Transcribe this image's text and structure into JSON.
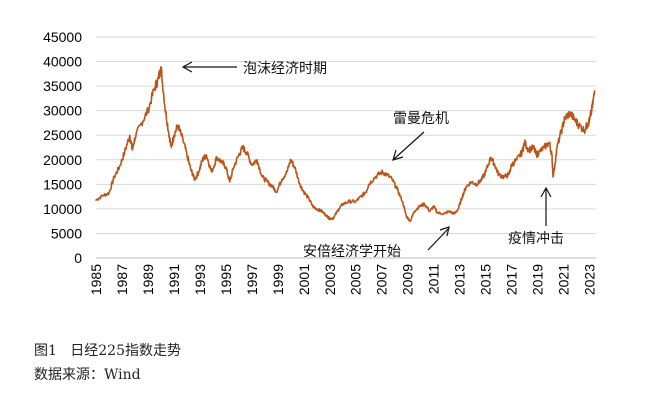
{
  "chart_data": {
    "type": "line",
    "title": "",
    "xlabel": "",
    "ylabel": "",
    "ylim": [
      0,
      45000
    ],
    "xlim": [
      1985,
      2023.5
    ],
    "yticks": [
      0,
      5000,
      10000,
      15000,
      20000,
      25000,
      30000,
      35000,
      40000,
      45000
    ],
    "xticks": [
      "1985",
      "1987",
      "1989",
      "1991",
      "1993",
      "1995",
      "1997",
      "1999",
      "2001",
      "2003",
      "2005",
      "2007",
      "2009",
      "2011",
      "2013",
      "2015",
      "2017",
      "2019",
      "2021",
      "2023"
    ],
    "grid": "horizontal",
    "line_color": "#b8561a",
    "series": [
      {
        "x": [
          1985.0,
          1985.5,
          1986.0,
          1986.4,
          1986.8,
          1987.2,
          1987.6,
          1987.8,
          1988.0,
          1988.5,
          1989.0,
          1989.5,
          1989.8,
          1990.0,
          1990.3,
          1990.6,
          1990.8,
          1991.0,
          1991.3,
          1991.7,
          1992.0,
          1992.3,
          1992.6,
          1992.9,
          1993.2,
          1993.5,
          1993.9,
          1994.3,
          1994.7,
          1995.0,
          1995.3,
          1995.6,
          1996.0,
          1996.3,
          1996.6,
          1997.0,
          1997.4,
          1997.8,
          1998.2,
          1998.6,
          1998.9,
          1999.3,
          1999.7,
          2000.0,
          2000.3,
          2000.7,
          2001.0,
          2001.4,
          2001.7,
          2002.0,
          2002.4,
          2002.8,
          2003.0,
          2003.3,
          2003.7,
          2004.0,
          2004.5,
          2005.0,
          2005.4,
          2005.8,
          2006.0,
          2006.5,
          2007.0,
          2007.4,
          2007.8,
          2008.2,
          2008.6,
          2008.9,
          2009.2,
          2009.5,
          2009.9,
          2010.3,
          2010.7,
          2011.0,
          2011.3,
          2011.8,
          2012.2,
          2012.6,
          2012.9,
          2013.2,
          2013.5,
          2013.9,
          2014.3,
          2014.7,
          2015.0,
          2015.4,
          2015.7,
          2016.0,
          2016.4,
          2016.8,
          2017.0,
          2017.4,
          2017.8,
          2018.0,
          2018.3,
          2018.7,
          2018.9,
          2019.1,
          2019.5,
          2019.9,
          2020.1,
          2020.2,
          2020.5,
          2020.9,
          2021.1,
          2021.5,
          2021.9,
          2022.2,
          2022.6,
          2022.9,
          2023.0,
          2023.2,
          2023.4
        ],
        "y": [
          11800,
          12700,
          13200,
          16500,
          18500,
          21500,
          25000,
          22000,
          24500,
          27500,
          30000,
          34500,
          36500,
          38900,
          31000,
          25500,
          22500,
          25000,
          27000,
          24000,
          21000,
          18000,
          16000,
          17500,
          20000,
          21000,
          17500,
          20500,
          19500,
          18500,
          15500,
          18500,
          21000,
          22500,
          21500,
          19000,
          20000,
          16500,
          15500,
          14500,
          13500,
          16000,
          17500,
          20000,
          18500,
          15000,
          13500,
          12000,
          10500,
          10000,
          9500,
          8500,
          8000,
          8200,
          10000,
          11000,
          11500,
          11500,
          12500,
          13500,
          15000,
          16500,
          17500,
          17000,
          16000,
          14000,
          11500,
          8500,
          7500,
          9500,
          10500,
          11000,
          9500,
          10500,
          9200,
          9000,
          9500,
          9000,
          10000,
          12500,
          14500,
          15500,
          15000,
          16000,
          17500,
          20500,
          19000,
          17000,
          16500,
          17000,
          19000,
          20000,
          21500,
          23500,
          22000,
          22500,
          21000,
          21500,
          22500,
          23500,
          21000,
          16500,
          22500,
          26500,
          28500,
          29500,
          28000,
          27000,
          26000,
          27500,
          28000,
          30500,
          34000
        ]
      }
    ]
  },
  "annotations": {
    "bubble": "泡沫经济时期",
    "lehman": "雷曼危机",
    "abenomics": "安倍经济学开始",
    "covid": "疫情冲击"
  },
  "caption": {
    "title": "图1   日经225指数走势",
    "source": "数据来源：Wind"
  }
}
